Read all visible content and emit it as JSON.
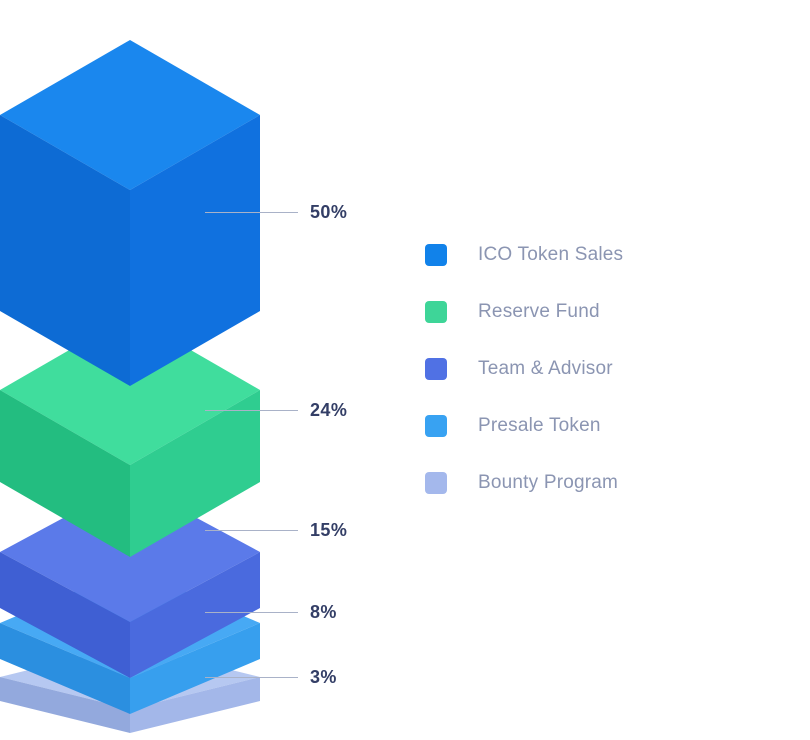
{
  "chart_data": {
    "type": "bar",
    "subtype": "isometric-3d-stacked-tower",
    "title": "",
    "unit": "%",
    "categories": [
      "ICO Token Sales",
      "Reserve Fund",
      "Team & Advisor",
      "Presale Token",
      "Bounty Program"
    ],
    "values": [
      50,
      24,
      15,
      8,
      3
    ],
    "series": [
      {
        "label": "ICO Token Sales",
        "value": 50,
        "pct_label": "50%",
        "swatch": "#1182ea",
        "colors": {
          "top": "#1a87ee",
          "left": "#0d6bd4",
          "right": "#1071df"
        }
      },
      {
        "label": "Reserve Fund",
        "value": 24,
        "pct_label": "24%",
        "swatch": "#3ed598",
        "colors": {
          "top": "#40dd9d",
          "left": "#23bd80",
          "right": "#2fcd90"
        }
      },
      {
        "label": "Team & Advisor",
        "value": 15,
        "pct_label": "15%",
        "swatch": "#5071e4",
        "colors": {
          "top": "#5b7ae9",
          "left": "#3f5fd3",
          "right": "#4a6ade"
        }
      },
      {
        "label": "Presale Token",
        "value": 8,
        "pct_label": "8%",
        "swatch": "#38a2f2",
        "colors": {
          "top": "#47a9f4",
          "left": "#2b8fe0",
          "right": "#379fee"
        }
      },
      {
        "label": "Bounty Program",
        "value": 3,
        "pct_label": "3%",
        "swatch": "#a4b8ec",
        "colors": {
          "top": "#b6c8f1",
          "left": "#93a9dd",
          "right": "#a3b7e9"
        }
      }
    ],
    "legend_position": "right",
    "grid": false,
    "leader_line_color": "#a9b2c8",
    "percent_label_color": "#333e66",
    "legend_text_color": "#8b95b2",
    "background": "#ffffff"
  }
}
